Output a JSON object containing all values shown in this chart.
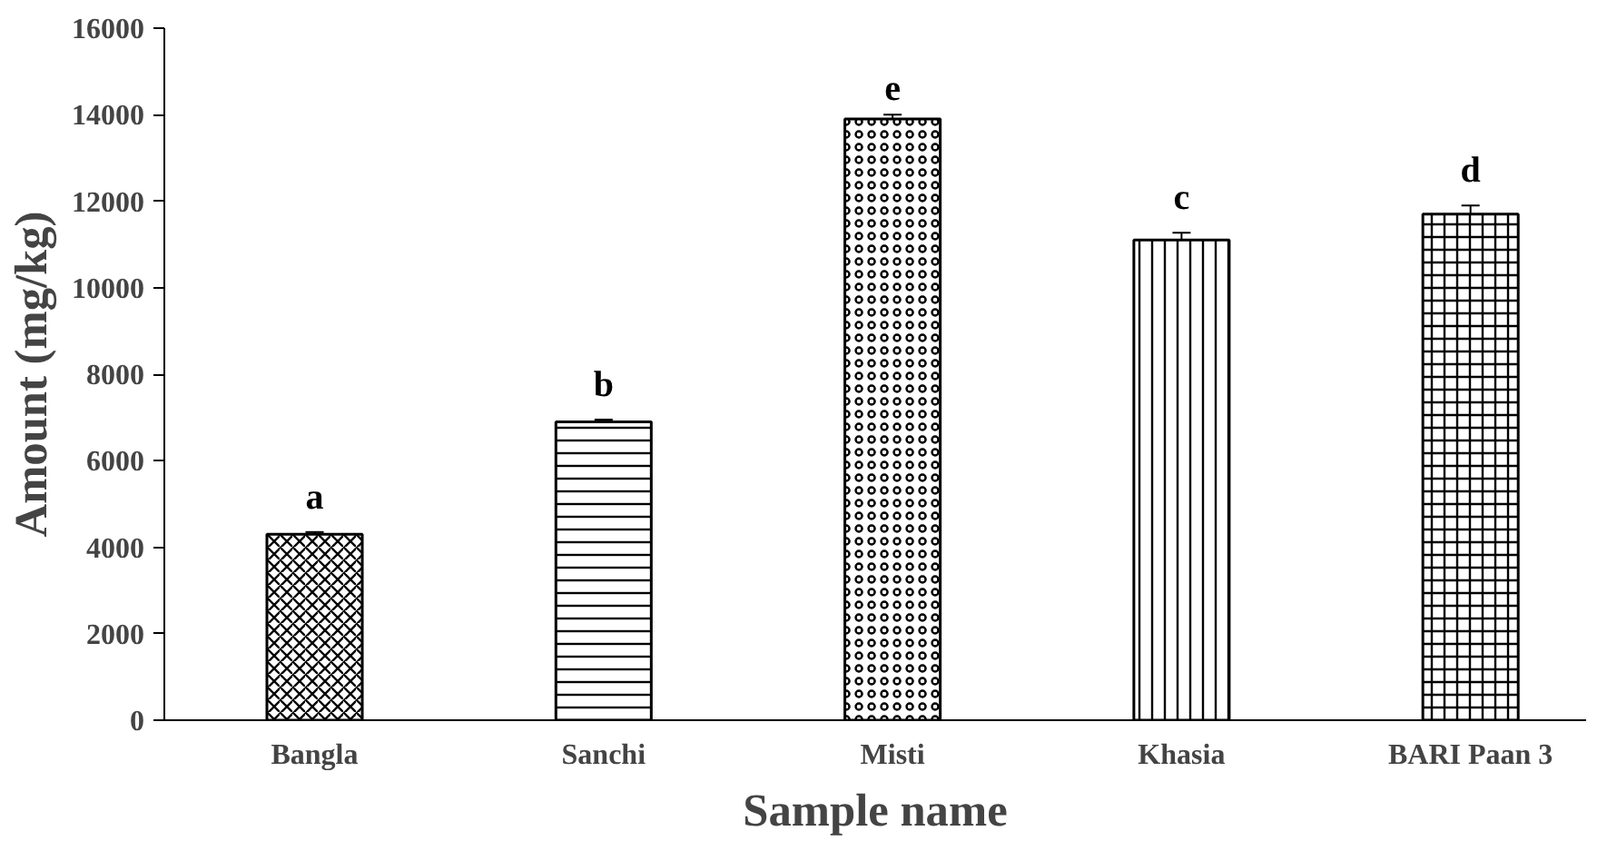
{
  "chart_data": {
    "type": "bar",
    "xlabel": "Sample name",
    "ylabel": "Amount (mg/kg)",
    "categories": [
      "Bangla",
      "Sanchi",
      "Misti",
      "Khasia",
      "BARI Paan 3"
    ],
    "values": [
      4300,
      6900,
      13900,
      11100,
      11700
    ],
    "errors": [
      50,
      50,
      100,
      170,
      200
    ],
    "color": "#000000",
    "ylim": [
      0,
      16000
    ],
    "yticks": [
      0,
      2000,
      4000,
      6000,
      8000,
      10000,
      12000,
      14000,
      16000
    ],
    "grid": false,
    "annotations": [
      "a",
      "b",
      "e",
      "c",
      "d"
    ]
  }
}
